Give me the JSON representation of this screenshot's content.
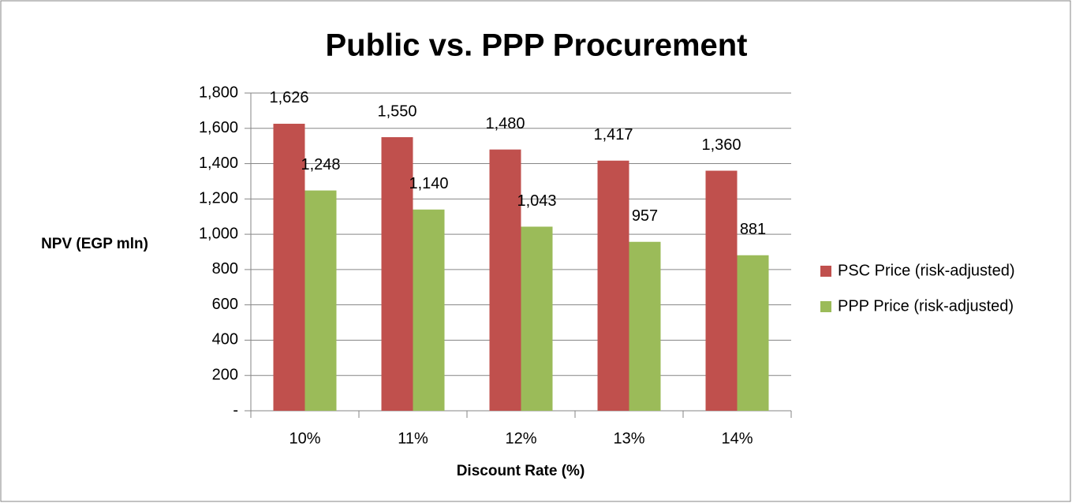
{
  "chart_data": {
    "type": "bar",
    "title": "Public vs. PPP Procurement",
    "x_label": "Discount Rate (%)",
    "y_label": "NPV (EGP mln)",
    "categories": [
      "10%",
      "11%",
      "12%",
      "13%",
      "14%"
    ],
    "series": [
      {
        "name": "PSC Price (risk-adjusted)",
        "color": "#c0504d",
        "values": [
          1626,
          1550,
          1480,
          1417,
          1360
        ],
        "value_labels": [
          "1,626",
          "1,550",
          "1,480",
          "1,417",
          "1,360"
        ]
      },
      {
        "name": "PPP Price (risk-adjusted)",
        "color": "#9bbb59",
        "values": [
          1248,
          1140,
          1043,
          957,
          881
        ],
        "value_labels": [
          "1,248",
          "1,140",
          "1,043",
          "957",
          "881"
        ]
      }
    ],
    "ylim": [
      0,
      1800
    ],
    "yticks": [
      {
        "value": 0,
        "label": "-"
      },
      200,
      400,
      600,
      800,
      {
        "value": 1000,
        "label": "1,000"
      },
      {
        "value": 1200,
        "label": "1,200"
      },
      {
        "value": 1400,
        "label": "1,400"
      },
      {
        "value": 1600,
        "label": "1,600"
      },
      {
        "value": 1800,
        "label": "1,800"
      }
    ],
    "grid": true,
    "legend": "right"
  }
}
